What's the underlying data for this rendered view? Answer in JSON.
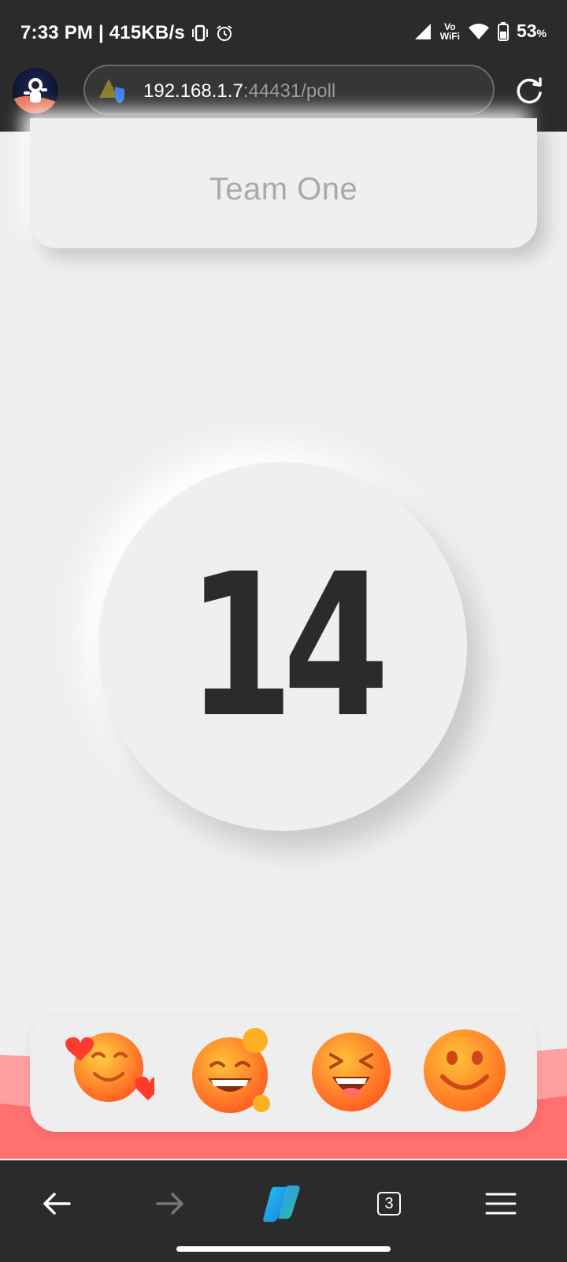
{
  "status_bar": {
    "time_speed": "7:33 PM | 415KB/s",
    "vo": "Vo",
    "wifi_label": "WiFi",
    "battery": "53",
    "battery_unit": "%"
  },
  "browser": {
    "url_host": "192.168.1.7",
    "url_rest": ":44431/poll",
    "tab_count": "3"
  },
  "poll": {
    "team_name": "Team One",
    "count": "14"
  },
  "reactions": [
    {
      "icon": "smiling-face-with-hearts-emoji"
    },
    {
      "icon": "beaming-face-emoji"
    },
    {
      "icon": "grinning-squinting-face-emoji"
    },
    {
      "icon": "smiling-face-emoji"
    }
  ],
  "colors": {
    "chrome": "#2b2b2b",
    "page_bg": "#efefef",
    "count_text": "#2b2b2b",
    "team_text": "#a9a9a9",
    "wave": "#ff7070"
  }
}
